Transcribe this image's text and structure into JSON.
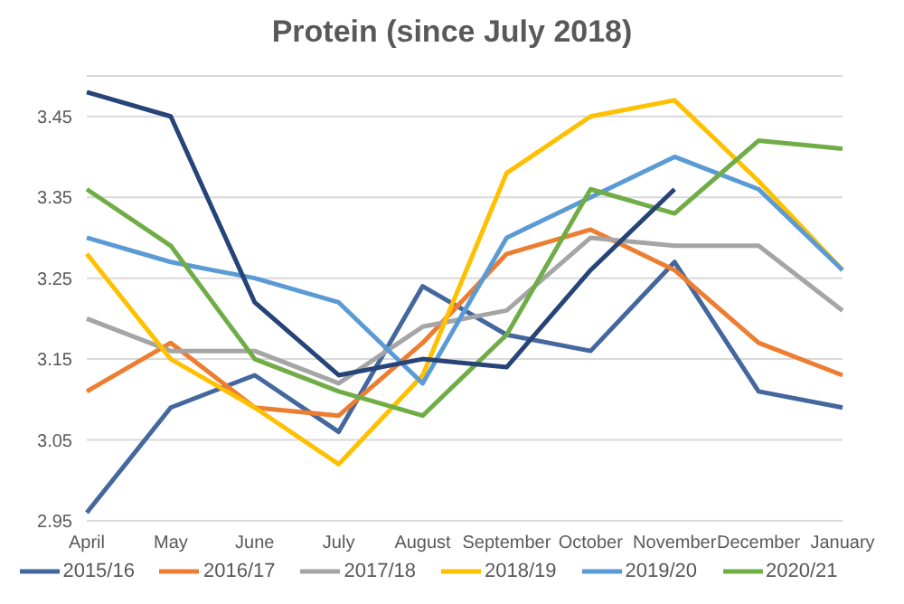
{
  "chart_data": {
    "type": "line",
    "title": "Protein (since July 2018)",
    "categories": [
      "April",
      "May",
      "June",
      "July",
      "August",
      "September",
      "October",
      "November",
      "December",
      "January"
    ],
    "series": [
      {
        "name": "2015/16",
        "color": "#44679e",
        "values": [
          2.96,
          3.09,
          3.13,
          3.06,
          3.24,
          3.18,
          3.16,
          3.27,
          3.11,
          3.09
        ]
      },
      {
        "name": "2016/17",
        "color": "#ed7d31",
        "values": [
          3.11,
          3.17,
          3.09,
          3.08,
          3.17,
          3.28,
          3.31,
          3.26,
          3.17,
          3.13
        ]
      },
      {
        "name": "2017/18",
        "color": "#a5a5a5",
        "values": [
          3.2,
          3.16,
          3.16,
          3.12,
          3.19,
          3.21,
          3.3,
          3.29,
          3.29,
          3.21
        ]
      },
      {
        "name": "2018/19",
        "color": "#ffc000",
        "values": [
          3.28,
          3.15,
          3.09,
          3.02,
          3.13,
          3.38,
          3.45,
          3.47,
          3.37,
          3.26
        ]
      },
      {
        "name": "2019/20",
        "color": "#5b9bd5",
        "values": [
          3.3,
          3.27,
          3.25,
          3.22,
          3.12,
          3.3,
          3.35,
          3.4,
          3.36,
          3.26
        ]
      },
      {
        "name": "2020/21",
        "color": "#70ad47",
        "values": [
          3.36,
          3.29,
          3.15,
          3.11,
          3.08,
          3.18,
          3.36,
          3.33,
          3.42,
          3.41
        ]
      },
      {
        "color": "#264478",
        "values": [
          3.48,
          3.45,
          3.22,
          3.13,
          3.15,
          3.14,
          3.26,
          3.36,
          null,
          null
        ]
      }
    ],
    "ylim": [
      2.95,
      3.5
    ],
    "yticks": [
      2.95,
      3.05,
      3.15,
      3.25,
      3.35,
      3.45
    ],
    "grid": "y",
    "legend": "bottom",
    "marker": "none",
    "line_style": "solid"
  }
}
